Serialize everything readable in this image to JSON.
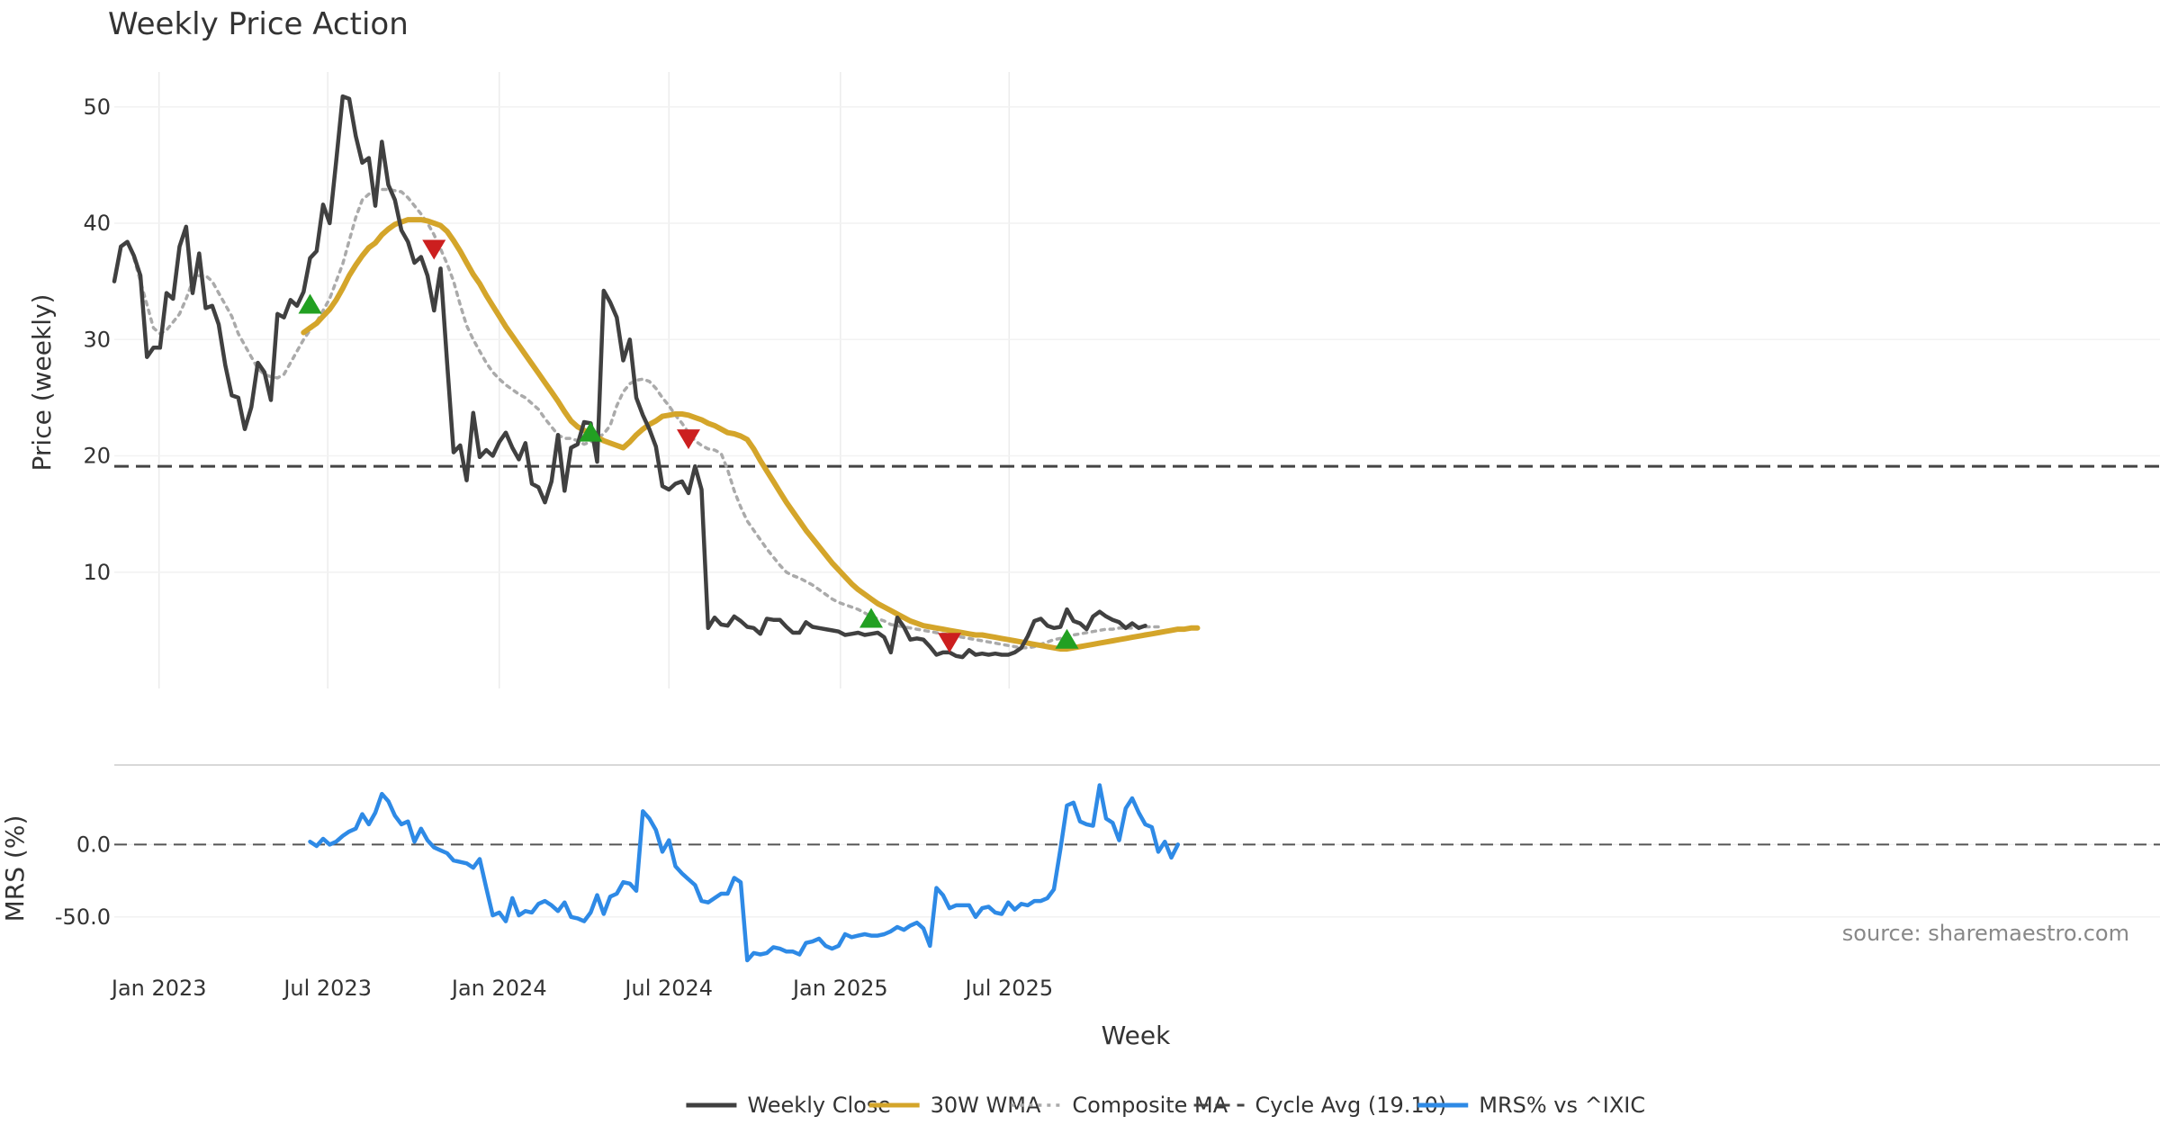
{
  "chart_data": {
    "type": "line",
    "title": "Weekly Price Action",
    "xlabel": "Week",
    "ylabel_price": "Price (weekly)",
    "ylabel_mrs": "MRS (%)",
    "source_text": "source: sharemaestro.com",
    "x_start": "2022-11-14",
    "x_ticks": [
      {
        "date": "2023-01-01",
        "label": "Jan 2023"
      },
      {
        "date": "2023-07-01",
        "label": "Jul 2023"
      },
      {
        "date": "2024-01-01",
        "label": "Jan 2024"
      },
      {
        "date": "2024-07-01",
        "label": "Jul 2024"
      },
      {
        "date": "2025-01-01",
        "label": "Jan 2025"
      },
      {
        "date": "2025-07-01",
        "label": "Jul 2025"
      }
    ],
    "price_axis": {
      "ylim": [
        0,
        53
      ],
      "ticks": [
        10,
        20,
        30,
        40,
        50
      ]
    },
    "mrs_axis": {
      "ylim": [
        -85,
        55
      ],
      "ticks": [
        0.0,
        -50.0
      ],
      "tick_labels": [
        "0.0",
        "-50.0"
      ]
    },
    "cycle_avg": 19.1,
    "colors": {
      "weekly_close": "#404040",
      "wma": "#d4a52a",
      "composite": "#aaaaaa",
      "cycle": "#444444",
      "mrs": "#2e8ae6",
      "buy": "#22a022",
      "sell": "#cc1f1f"
    },
    "series": [
      {
        "name": "Weekly Close",
        "start": 0,
        "values": [
          35,
          38,
          38.4,
          37.2,
          35.5,
          28.5,
          29.3,
          29.3,
          34,
          33.5,
          38,
          39.7,
          34,
          37.4,
          32.7,
          32.9,
          31.3,
          27.8,
          25.2,
          25,
          22.3,
          24.2,
          28,
          27.2,
          24.8,
          32.2,
          31.9,
          33.4,
          32.9,
          34.1,
          37,
          37.6,
          41.6,
          40,
          45.3,
          50.9,
          50.7,
          47.5,
          45.2,
          45.6,
          41.5,
          47,
          43.3,
          42,
          39.4,
          38.4,
          36.6,
          37.1,
          35.5,
          32.5,
          36.1,
          28,
          20.3,
          20.9,
          17.9,
          23.7,
          19.9,
          20.5,
          20,
          21.2,
          22,
          20.7,
          19.7,
          21.1,
          17.6,
          17.3,
          16,
          17.8,
          21.8,
          17,
          20.7,
          21,
          22.9,
          22.8,
          19.5,
          34.2,
          33.2,
          31.9,
          28.2,
          30,
          25,
          23.5,
          22.3,
          20.8,
          17.4,
          17.1,
          17.6,
          17.8,
          16.8,
          19.1,
          17.1,
          5.2,
          6.1,
          5.5,
          5.4,
          6.2,
          5.8,
          5.3,
          5.2,
          4.7,
          6,
          5.9,
          5.9,
          5.3,
          4.8,
          4.8,
          5.7,
          5.3,
          5.2,
          5.1,
          5,
          4.9,
          4.6,
          4.7,
          4.8,
          4.6,
          4.7,
          4.8,
          4.4,
          3.1,
          6.1,
          5.3,
          4.2,
          4.3,
          4.2,
          3.6,
          2.9,
          3.1,
          3.1,
          2.8,
          2.7,
          3.3,
          2.9,
          3,
          2.9,
          3,
          2.9,
          2.9,
          3.1,
          3.5,
          4.5,
          5.8,
          6,
          5.4,
          5.2,
          5.3,
          6.8,
          5.8,
          5.6,
          5.1,
          6.2,
          6.6,
          6.2,
          5.9,
          5.7,
          5.2,
          5.6,
          5.2,
          5.4
        ]
      },
      {
        "name": "30W WMA",
        "start": 29,
        "values": [
          30.6,
          31,
          31.4,
          32,
          32.6,
          33.4,
          34.4,
          35.5,
          36.4,
          37.2,
          37.9,
          38.3,
          39,
          39.5,
          39.9,
          40.1,
          40.3,
          40.3,
          40.3,
          40.2,
          40,
          39.8,
          39.3,
          38.5,
          37.6,
          36.6,
          35.6,
          34.8,
          33.8,
          32.9,
          32,
          31.1,
          30.3,
          29.5,
          28.7,
          27.9,
          27.1,
          26.3,
          25.5,
          24.7,
          23.8,
          23,
          22.5,
          22.2,
          21.8,
          21.6,
          21.3,
          21.1,
          20.9,
          20.7,
          21.2,
          21.8,
          22.3,
          22.7,
          23,
          23.4,
          23.5,
          23.6,
          23.6,
          23.5,
          23.3,
          23.1,
          22.8,
          22.6,
          22.3,
          22,
          21.9,
          21.7,
          21.4,
          20.6,
          19.6,
          18.7,
          17.8,
          16.9,
          16,
          15.2,
          14.4,
          13.6,
          12.9,
          12.2,
          11.5,
          10.8,
          10.2,
          9.6,
          9,
          8.5,
          8.1,
          7.7,
          7.3,
          7,
          6.7,
          6.4,
          6.1,
          5.8,
          5.6,
          5.4,
          5.3,
          5.2,
          5.1,
          5,
          4.9,
          4.8,
          4.7,
          4.6,
          4.6,
          4.5,
          4.4,
          4.3,
          4.2,
          4.1,
          4,
          3.9,
          3.8,
          3.7,
          3.6,
          3.5,
          3.4,
          3.4,
          3.5,
          3.6,
          3.7,
          3.8,
          3.9,
          4,
          4.1,
          4.2,
          4.3,
          4.4,
          4.5,
          4.6,
          4.7,
          4.8,
          4.9,
          5,
          5.1,
          5.1,
          5.2,
          5.2
        ]
      },
      {
        "name": "Composite MA",
        "start": 3,
        "values": [
          37,
          35,
          33,
          31,
          30.5,
          30.8,
          31.5,
          32.2,
          33.5,
          35,
          35.5,
          35.5,
          35,
          34,
          33,
          32,
          30.5,
          29.5,
          28.5,
          27.5,
          27,
          26.8,
          26.7,
          27,
          28,
          29,
          30,
          30.8,
          31.5,
          32.5,
          33.5,
          35,
          36.5,
          38.5,
          40.5,
          42,
          42.5,
          42.8,
          42.9,
          42.9,
          42.8,
          42.7,
          42.2,
          41.5,
          40.8,
          40,
          39,
          37.8,
          36.5,
          35,
          33,
          31.2,
          30,
          29,
          28,
          27.2,
          26.6,
          26.1,
          25.7,
          25.3,
          25,
          24.5,
          24,
          23.2,
          22.5,
          21.8,
          21.5,
          21.5,
          21.3,
          21,
          21.2,
          21.5,
          21.9,
          22.6,
          24.3,
          25.5,
          26.2,
          26.5,
          26.6,
          26.4,
          25.8,
          25,
          24.3,
          23.5,
          22.8,
          22,
          21.3,
          20.9,
          20.6,
          20.5,
          20.2,
          18.8,
          17,
          15.6,
          14.4,
          13.6,
          12.8,
          12,
          11.3,
          10.6,
          10,
          9.7,
          9.5,
          9.2,
          8.9,
          8.5,
          8.1,
          7.7,
          7.4,
          7.2,
          7,
          6.8,
          6.5,
          6.2,
          6,
          5.8,
          5.5,
          5.4,
          5.3,
          5.2,
          5.1,
          5,
          4.9,
          4.8,
          4.7,
          4.6,
          4.5,
          4.4,
          4.3,
          4.2,
          4.1,
          4,
          3.9,
          3.8,
          3.7,
          3.6,
          3.5,
          3.5,
          3.6,
          3.8,
          4,
          4.2,
          4.3,
          4.5,
          4.6,
          4.7,
          4.8,
          4.9,
          5,
          5.1,
          5.1,
          5.2,
          5.2,
          5.2,
          5.3,
          5.3,
          5.3,
          5.3
        ]
      },
      {
        "name": "MRS% vs ^IXIC",
        "start": 30,
        "values": [
          2,
          -1,
          4,
          0,
          2,
          6,
          9,
          11,
          21,
          14,
          22,
          35,
          30,
          20,
          14,
          16,
          2,
          11,
          3,
          -2,
          -4,
          -6,
          -11,
          -12,
          -13,
          -16,
          -10,
          -30,
          -49,
          -47,
          -53,
          -37,
          -49,
          -46,
          -47,
          -41,
          -39,
          -42,
          -46,
          -40,
          -50,
          -51,
          -53,
          -47,
          -35,
          -48,
          -36,
          -34,
          -26,
          -27,
          -32,
          23,
          18,
          10,
          -5,
          3,
          -15,
          -20,
          -24,
          -28,
          -39,
          -40,
          -37,
          -34,
          -34,
          -23,
          -26,
          -80,
          -75,
          -76,
          -75,
          -71,
          -72,
          -74,
          -74,
          -76,
          -68,
          -67,
          -65,
          -70,
          -72,
          -70,
          -62,
          -64,
          -63,
          -62,
          -63,
          -63,
          -62,
          -60,
          -57,
          -59,
          -56,
          -54,
          -58,
          -70,
          -30,
          -35,
          -44,
          -42,
          -42,
          -42,
          -50,
          -44,
          -43,
          -47,
          -48,
          -40,
          -45,
          -41,
          -42,
          -39,
          -39,
          -37,
          -31,
          -3,
          27,
          29,
          16,
          14,
          13,
          41,
          18,
          15,
          3,
          25,
          32,
          22,
          14,
          12,
          -5,
          2,
          -9,
          0
        ]
      }
    ],
    "signals": [
      {
        "type": "buy",
        "index": 30,
        "value": 33
      },
      {
        "type": "sell",
        "index": 49,
        "value": 37.8
      },
      {
        "type": "buy",
        "index": 73,
        "value": 22
      },
      {
        "type": "sell",
        "index": 88,
        "value": 21.5
      },
      {
        "type": "buy",
        "index": 116,
        "value": 6
      },
      {
        "type": "sell",
        "index": 128,
        "value": 4
      },
      {
        "type": "buy",
        "index": 146,
        "value": 4.2
      }
    ],
    "legend": {
      "placement": "bottom-center",
      "items": [
        {
          "label": "Weekly Close",
          "style": "solid",
          "color_key": "weekly_close"
        },
        {
          "label": "30W WMA",
          "style": "solid",
          "color_key": "wma"
        },
        {
          "label": "Composite MA",
          "style": "dotted",
          "color_key": "composite"
        },
        {
          "label": "Cycle Avg (19.10)",
          "style": "dashed",
          "color_key": "cycle"
        },
        {
          "label": "MRS% vs ^IXIC",
          "style": "solid",
          "color_key": "mrs"
        }
      ]
    }
  }
}
